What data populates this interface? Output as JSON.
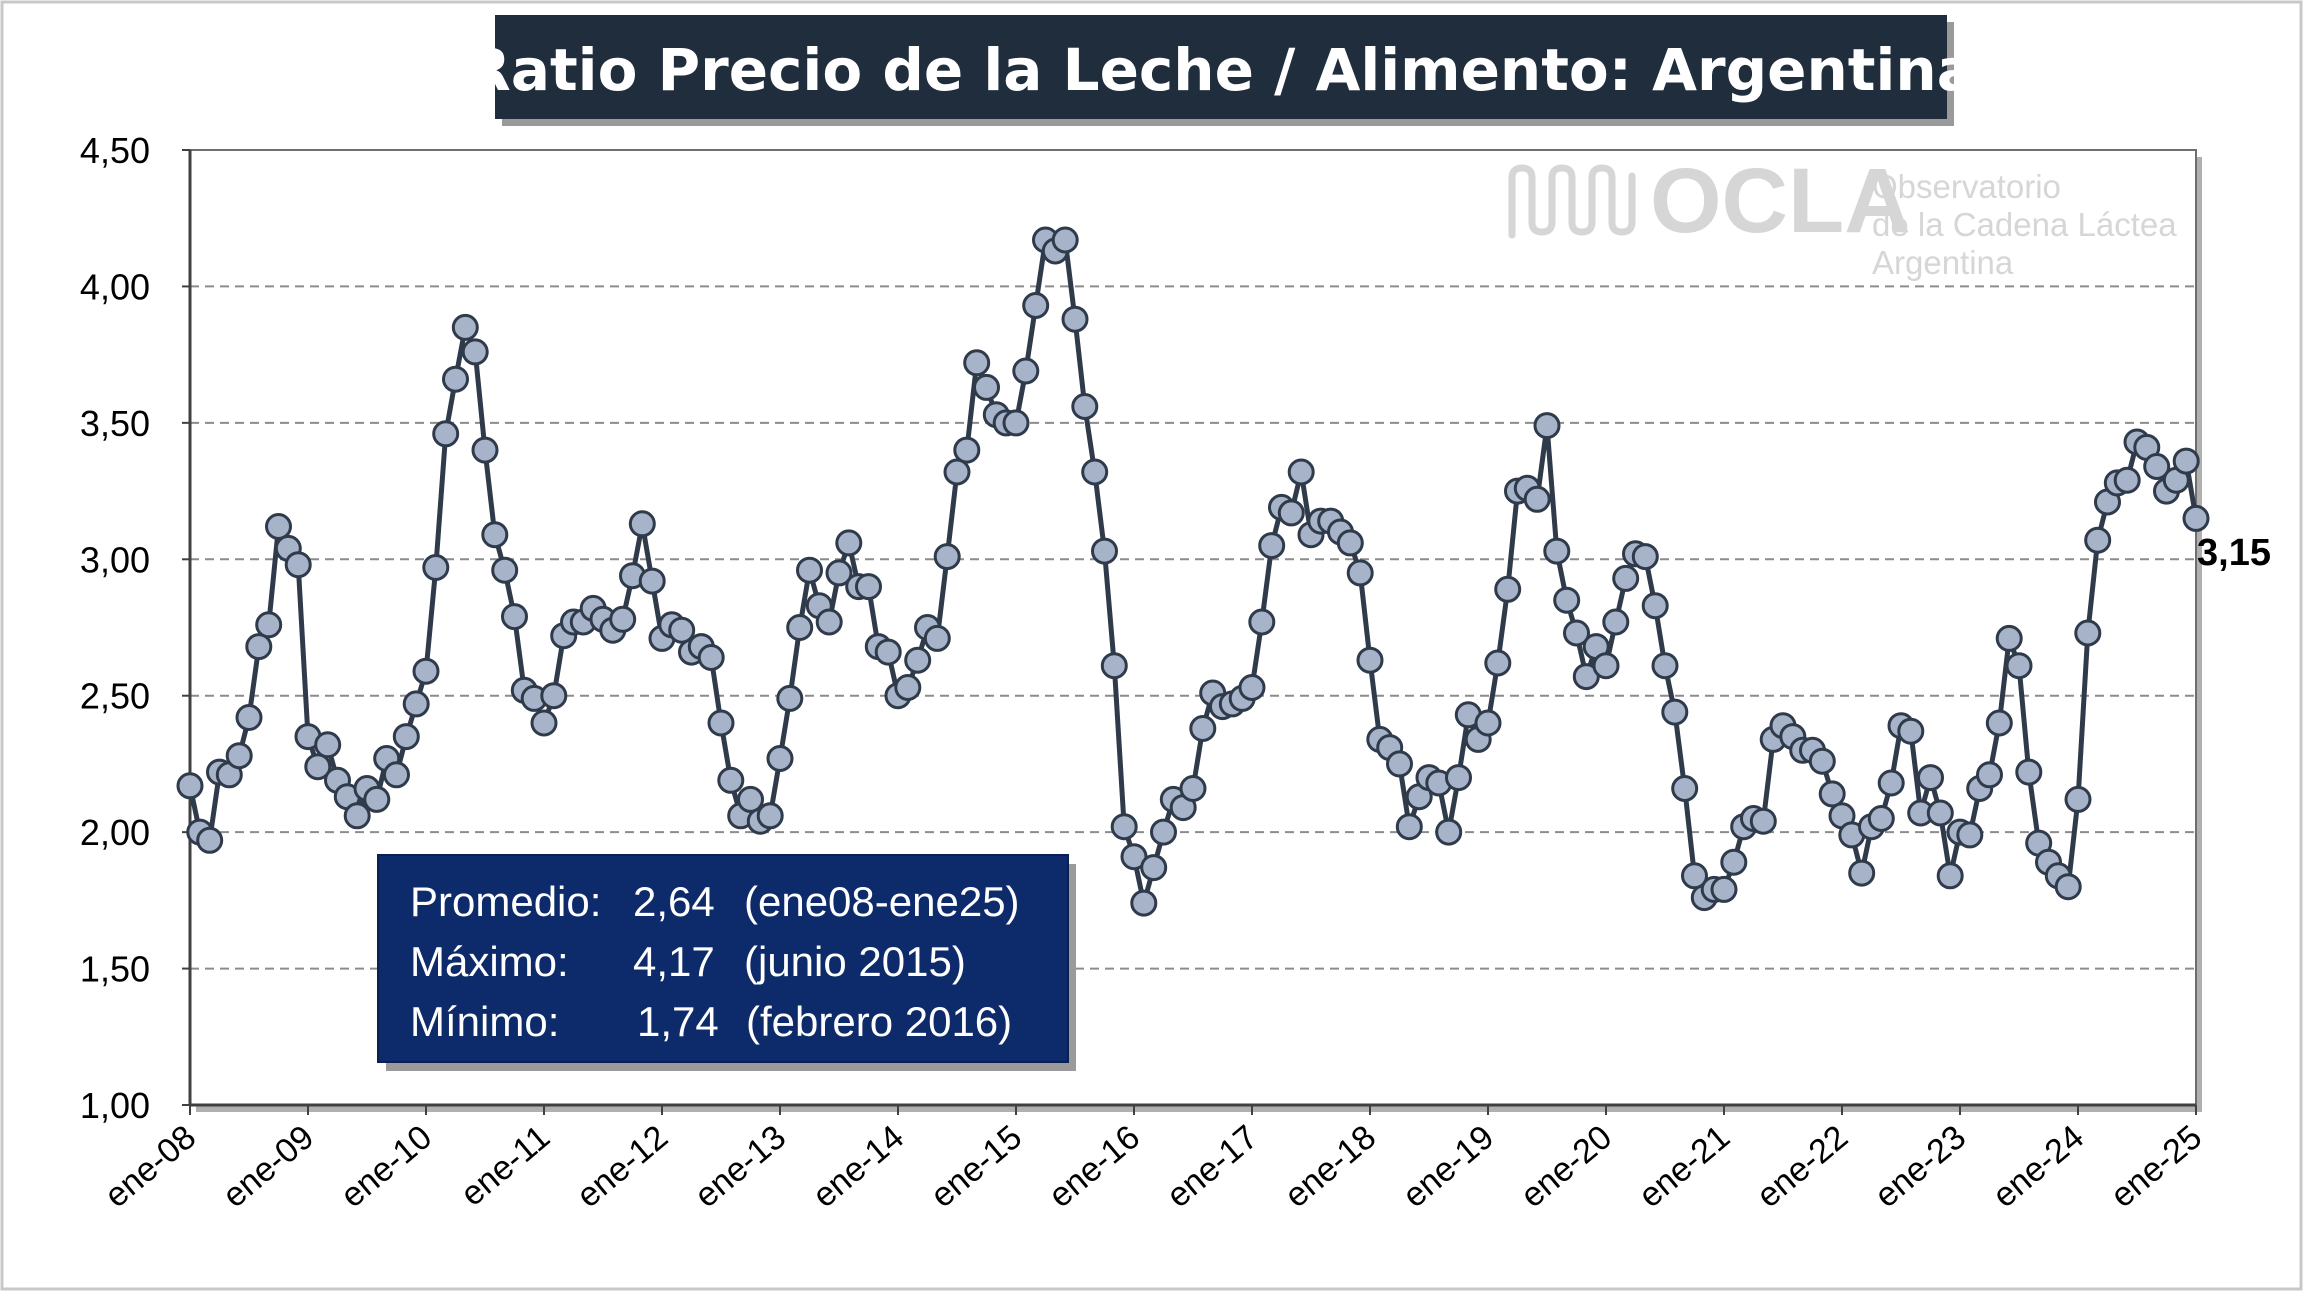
{
  "chart_data": {
    "type": "line",
    "title": "Ratio Precio de la Leche / Alimento: Argentina",
    "xlabel": "",
    "ylabel": "",
    "ylim": [
      1.0,
      4.5
    ],
    "grid": true,
    "y_ticks": [
      "1,00",
      "1,50",
      "2,00",
      "2,50",
      "3,00",
      "3,50",
      "4,00",
      "4,50"
    ],
    "x_ticks": [
      "ene-08",
      "ene-09",
      "ene-10",
      "ene-11",
      "ene-12",
      "ene-13",
      "ene-14",
      "ene-15",
      "ene-16",
      "ene-17",
      "ene-18",
      "ene-19",
      "ene-20",
      "ene-21",
      "ene-22",
      "ene-23",
      "ene-24",
      "ene-25"
    ],
    "x_start": "2008-01",
    "x_end": "2025-01",
    "series": [
      {
        "values": [
          2.17,
          2.0,
          1.97,
          2.22,
          2.21,
          2.28,
          2.42,
          2.68,
          2.76,
          3.12,
          3.04,
          2.98,
          2.35,
          2.24,
          2.32,
          2.19,
          2.13,
          2.06,
          2.16,
          2.12,
          2.27,
          2.21,
          2.35,
          2.47,
          2.59,
          2.97,
          3.46,
          3.66,
          3.85,
          3.76,
          3.4,
          3.09,
          2.96,
          2.79,
          2.52,
          2.49,
          2.4,
          2.5,
          2.72,
          2.77,
          2.77,
          2.82,
          2.78,
          2.74,
          2.78,
          2.94,
          3.13,
          2.92,
          2.71,
          2.76,
          2.74,
          2.66,
          2.68,
          2.64,
          2.4,
          2.19,
          2.06,
          2.12,
          2.04,
          2.06,
          2.27,
          2.49,
          2.75,
          2.96,
          2.83,
          2.77,
          2.95,
          3.06,
          2.9,
          2.9,
          2.68,
          2.66,
          2.5,
          2.53,
          2.63,
          2.75,
          2.71,
          3.01,
          3.32,
          3.4,
          3.72,
          3.63,
          3.53,
          3.5,
          3.5,
          3.69,
          3.93,
          4.17,
          4.13,
          4.17,
          3.88,
          3.56,
          3.32,
          3.03,
          2.61,
          2.02,
          1.91,
          1.74,
          1.87,
          2.0,
          2.12,
          2.09,
          2.16,
          2.38,
          2.51,
          2.46,
          2.47,
          2.49,
          2.53,
          2.77,
          3.05,
          3.19,
          3.17,
          3.32,
          3.09,
          3.14,
          3.14,
          3.1,
          3.06,
          2.95,
          2.63,
          2.34,
          2.31,
          2.25,
          2.02,
          2.13,
          2.2,
          2.18,
          2.0,
          2.2,
          2.43,
          2.34,
          2.4,
          2.62,
          2.89,
          3.25,
          3.26,
          3.22,
          3.49,
          3.03,
          2.85,
          2.73,
          2.57,
          2.68,
          2.61,
          2.77,
          2.93,
          3.02,
          3.01,
          2.83,
          2.61,
          2.44,
          2.16,
          1.84,
          1.76,
          1.79,
          1.79,
          1.89,
          2.02,
          2.05,
          2.04,
          2.34,
          2.39,
          2.35,
          2.3,
          2.3,
          2.26,
          2.14,
          2.06,
          1.99,
          1.85,
          2.02,
          2.05,
          2.18,
          2.39,
          2.37,
          2.07,
          2.2,
          2.07,
          1.84,
          2.0,
          1.99,
          2.16,
          2.21,
          2.4,
          2.71,
          2.61,
          2.22,
          1.96,
          1.89,
          1.84,
          1.8,
          2.12,
          2.73,
          3.07,
          3.21,
          3.28,
          3.29,
          3.43,
          3.41,
          3.34,
          3.25,
          3.29,
          3.36,
          3.15
        ]
      }
    ],
    "last_value_label": "3,15",
    "colors": {
      "line": "#2f3a4a",
      "marker_fill": "#a6b3c9",
      "marker_stroke": "#2f3a4a",
      "title_bg": "#1f2d3d",
      "stats_bg": "#0d2a6b",
      "grid": "#8c8c8c"
    }
  },
  "stats_box": {
    "lines": [
      {
        "label": "Promedio:",
        "value": "2,64",
        "note": "(ene08-ene25)"
      },
      {
        "label": "Máximo:",
        "value": "4,17",
        "note": "(junio 2015)"
      },
      {
        "label": "Mínimo:",
        "value": "1,74",
        "note": "(febrero 2016)"
      }
    ]
  },
  "watermark": {
    "brand": "OCLA",
    "line1": "Observatorio",
    "line2": "de la Cadena Láctea",
    "line3": "Argentina"
  }
}
